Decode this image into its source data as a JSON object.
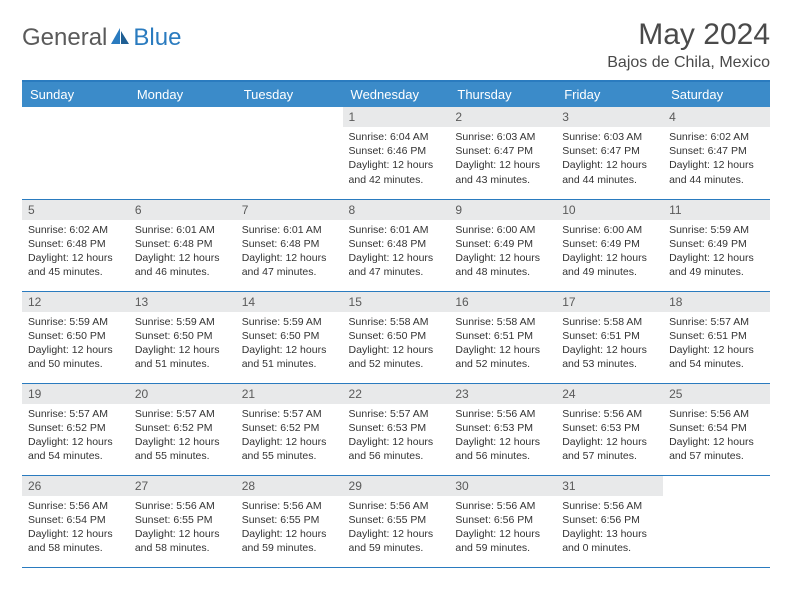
{
  "logo": {
    "text1": "General",
    "text2": "Blue"
  },
  "title": "May 2024",
  "location": "Bajos de Chila, Mexico",
  "colors": {
    "header_bg": "#3b8bc9",
    "border": "#2a7bbf",
    "daynum_bg": "#e8e9ea",
    "text": "#333333",
    "title_text": "#4a4a4a"
  },
  "days_header": [
    "Sunday",
    "Monday",
    "Tuesday",
    "Wednesday",
    "Thursday",
    "Friday",
    "Saturday"
  ],
  "weeks": [
    [
      null,
      null,
      null,
      {
        "n": "1",
        "sunrise": "6:04 AM",
        "sunset": "6:46 PM",
        "dl": "12 hours and 42 minutes."
      },
      {
        "n": "2",
        "sunrise": "6:03 AM",
        "sunset": "6:47 PM",
        "dl": "12 hours and 43 minutes."
      },
      {
        "n": "3",
        "sunrise": "6:03 AM",
        "sunset": "6:47 PM",
        "dl": "12 hours and 44 minutes."
      },
      {
        "n": "4",
        "sunrise": "6:02 AM",
        "sunset": "6:47 PM",
        "dl": "12 hours and 44 minutes."
      }
    ],
    [
      {
        "n": "5",
        "sunrise": "6:02 AM",
        "sunset": "6:48 PM",
        "dl": "12 hours and 45 minutes."
      },
      {
        "n": "6",
        "sunrise": "6:01 AM",
        "sunset": "6:48 PM",
        "dl": "12 hours and 46 minutes."
      },
      {
        "n": "7",
        "sunrise": "6:01 AM",
        "sunset": "6:48 PM",
        "dl": "12 hours and 47 minutes."
      },
      {
        "n": "8",
        "sunrise": "6:01 AM",
        "sunset": "6:48 PM",
        "dl": "12 hours and 47 minutes."
      },
      {
        "n": "9",
        "sunrise": "6:00 AM",
        "sunset": "6:49 PM",
        "dl": "12 hours and 48 minutes."
      },
      {
        "n": "10",
        "sunrise": "6:00 AM",
        "sunset": "6:49 PM",
        "dl": "12 hours and 49 minutes."
      },
      {
        "n": "11",
        "sunrise": "5:59 AM",
        "sunset": "6:49 PM",
        "dl": "12 hours and 49 minutes."
      }
    ],
    [
      {
        "n": "12",
        "sunrise": "5:59 AM",
        "sunset": "6:50 PM",
        "dl": "12 hours and 50 minutes."
      },
      {
        "n": "13",
        "sunrise": "5:59 AM",
        "sunset": "6:50 PM",
        "dl": "12 hours and 51 minutes."
      },
      {
        "n": "14",
        "sunrise": "5:59 AM",
        "sunset": "6:50 PM",
        "dl": "12 hours and 51 minutes."
      },
      {
        "n": "15",
        "sunrise": "5:58 AM",
        "sunset": "6:50 PM",
        "dl": "12 hours and 52 minutes."
      },
      {
        "n": "16",
        "sunrise": "5:58 AM",
        "sunset": "6:51 PM",
        "dl": "12 hours and 52 minutes."
      },
      {
        "n": "17",
        "sunrise": "5:58 AM",
        "sunset": "6:51 PM",
        "dl": "12 hours and 53 minutes."
      },
      {
        "n": "18",
        "sunrise": "5:57 AM",
        "sunset": "6:51 PM",
        "dl": "12 hours and 54 minutes."
      }
    ],
    [
      {
        "n": "19",
        "sunrise": "5:57 AM",
        "sunset": "6:52 PM",
        "dl": "12 hours and 54 minutes."
      },
      {
        "n": "20",
        "sunrise": "5:57 AM",
        "sunset": "6:52 PM",
        "dl": "12 hours and 55 minutes."
      },
      {
        "n": "21",
        "sunrise": "5:57 AM",
        "sunset": "6:52 PM",
        "dl": "12 hours and 55 minutes."
      },
      {
        "n": "22",
        "sunrise": "5:57 AM",
        "sunset": "6:53 PM",
        "dl": "12 hours and 56 minutes."
      },
      {
        "n": "23",
        "sunrise": "5:56 AM",
        "sunset": "6:53 PM",
        "dl": "12 hours and 56 minutes."
      },
      {
        "n": "24",
        "sunrise": "5:56 AM",
        "sunset": "6:53 PM",
        "dl": "12 hours and 57 minutes."
      },
      {
        "n": "25",
        "sunrise": "5:56 AM",
        "sunset": "6:54 PM",
        "dl": "12 hours and 57 minutes."
      }
    ],
    [
      {
        "n": "26",
        "sunrise": "5:56 AM",
        "sunset": "6:54 PM",
        "dl": "12 hours and 58 minutes."
      },
      {
        "n": "27",
        "sunrise": "5:56 AM",
        "sunset": "6:55 PM",
        "dl": "12 hours and 58 minutes."
      },
      {
        "n": "28",
        "sunrise": "5:56 AM",
        "sunset": "6:55 PM",
        "dl": "12 hours and 59 minutes."
      },
      {
        "n": "29",
        "sunrise": "5:56 AM",
        "sunset": "6:55 PM",
        "dl": "12 hours and 59 minutes."
      },
      {
        "n": "30",
        "sunrise": "5:56 AM",
        "sunset": "6:56 PM",
        "dl": "12 hours and 59 minutes."
      },
      {
        "n": "31",
        "sunrise": "5:56 AM",
        "sunset": "6:56 PM",
        "dl": "13 hours and 0 minutes."
      },
      null
    ]
  ],
  "labels": {
    "sunrise": "Sunrise: ",
    "sunset": "Sunset: ",
    "daylight": "Daylight: "
  }
}
